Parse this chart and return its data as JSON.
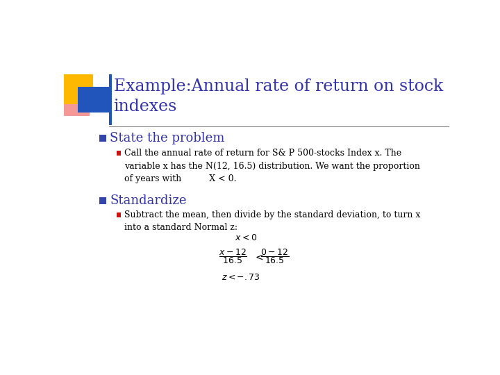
{
  "title_line1": "Example:Annual rate of return on stock",
  "title_line2": "indexes",
  "title_color": "#3333AA",
  "bg_color": "#FFFFFF",
  "bullet1_text": "State the problem",
  "bullet1_color": "#3333AA",
  "bullet2_text": "Standardize",
  "bullet2_color": "#3333AA",
  "deco_gold_color": "#FFB800",
  "deco_blue_color": "#2255BB",
  "deco_red_color": "#EE4444",
  "square_bullet_color": "#3344AA",
  "small_square_color": "#CC1111",
  "divider_color": "#888888",
  "title_fontsize": 17,
  "bullet_fontsize": 13,
  "sub_fontsize": 9,
  "formula_fontsize": 9
}
